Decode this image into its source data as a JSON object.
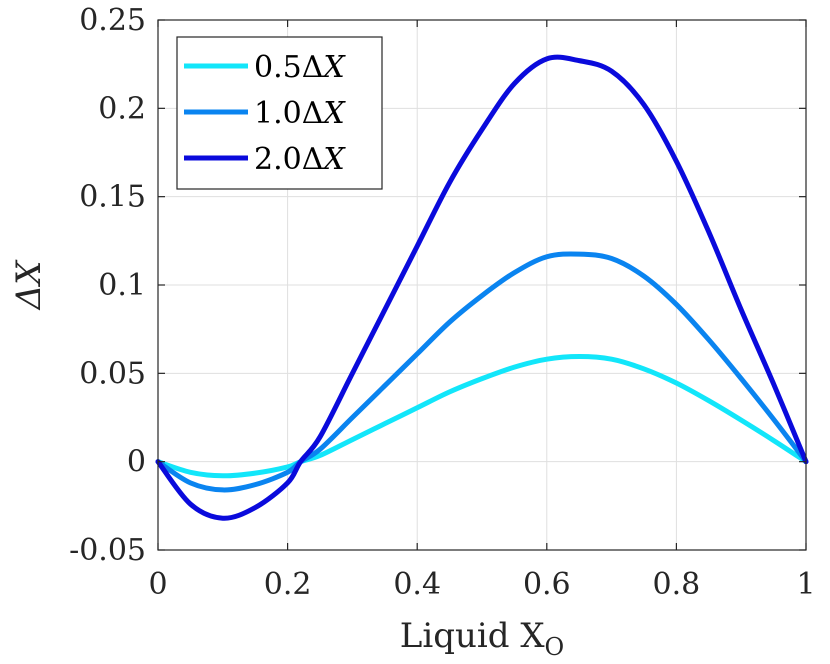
{
  "chart_data": {
    "type": "line",
    "title": "",
    "xlabel": "Liquid X",
    "xlabel_subscript": "O",
    "ylabel": "ΔX",
    "xlim": [
      0,
      1
    ],
    "ylim": [
      -0.05,
      0.25
    ],
    "xticks": [
      0,
      0.2,
      0.4,
      0.6,
      0.8,
      1
    ],
    "xtick_labels": [
      "0",
      "0.2",
      "0.4",
      "0.6",
      "0.8",
      "1"
    ],
    "yticks": [
      -0.05,
      0,
      0.05,
      0.1,
      0.15,
      0.2,
      0.25
    ],
    "ytick_labels": [
      "-0.05",
      "0",
      "0.05",
      "0.1",
      "0.15",
      "0.2",
      "0.25"
    ],
    "grid": true,
    "legend_position": "top-left",
    "x": [
      0,
      0.05,
      0.1,
      0.15,
      0.2,
      0.22,
      0.25,
      0.3,
      0.35,
      0.4,
      0.45,
      0.5,
      0.55,
      0.6,
      0.65,
      0.7,
      0.75,
      0.8,
      0.85,
      0.9,
      0.95,
      1
    ],
    "series": [
      {
        "name": "0.5ΔX",
        "legend_prefix": "0.5Δ",
        "legend_var": "X",
        "color": "#12E6FA",
        "values": [
          0,
          -0.006,
          -0.008,
          -0.0065,
          -0.003,
          0,
          0.0035,
          0.0125,
          0.0215,
          0.0305,
          0.0395,
          0.047,
          0.0535,
          0.058,
          0.0595,
          0.058,
          0.0525,
          0.0445,
          0.0345,
          0.0235,
          0.012,
          0
        ]
      },
      {
        "name": "1.0ΔX",
        "legend_prefix": "1.0Δ",
        "legend_var": "X",
        "color": "#0A84F0",
        "values": [
          0,
          -0.012,
          -0.016,
          -0.013,
          -0.006,
          0,
          0.007,
          0.025,
          0.043,
          0.061,
          0.079,
          0.094,
          0.107,
          0.116,
          0.1175,
          0.115,
          0.105,
          0.089,
          0.069,
          0.047,
          0.024,
          0
        ]
      },
      {
        "name": "2.0ΔX",
        "legend_prefix": "2.0Δ",
        "legend_var": "X",
        "color": "#0A0ADC",
        "values": [
          0,
          -0.024,
          -0.032,
          -0.026,
          -0.012,
          0,
          0.014,
          0.05,
          0.086,
          0.122,
          0.158,
          0.188,
          0.214,
          0.228,
          0.227,
          0.221,
          0.202,
          0.17,
          0.13,
          0.086,
          0.044,
          0
        ]
      }
    ]
  }
}
